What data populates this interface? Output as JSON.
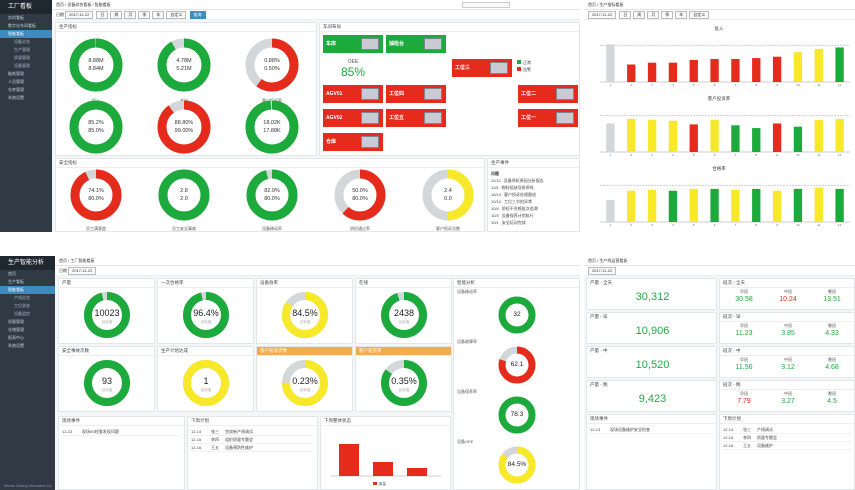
{
  "colors": {
    "green": "#1daa3c",
    "red": "#e52b1c",
    "yellow": "#f8e82a",
    "grey": "#d4d7da"
  },
  "p1": {
    "logo": "工厂看板",
    "breadcrumb": "首页 / 设备综合看板 / 智能看板",
    "filter_label": "日期",
    "filter_date": "2017-11-22",
    "buttons": [
      "日",
      "周",
      "月",
      "季",
      "年",
      "自定义"
    ],
    "query": "查询",
    "menu": [
      "实时看板",
      "数字化车间看板",
      "智能看板",
      "设备总览",
      "生产管理",
      "质量管理",
      "设备管理",
      "能耗管理",
      "人员管理",
      "仓库管理",
      "系统设置"
    ],
    "panel_left": "生产指标",
    "panel_mid": "车间布局",
    "panel_bottom": "安全指标",
    "panel_events": "生产事件",
    "donuts": [
      {
        "top": "8.88M",
        "bottom": "8.84M",
        "caption": "投入",
        "frac": 0.995,
        "color": "green"
      },
      {
        "top": "4.78M",
        "bottom": "5.21M",
        "caption": "产出",
        "frac": 0.92,
        "color": "green"
      },
      {
        "top": "0.88%",
        "bottom": "0.50%",
        "caption": "客户投诉率",
        "frac": 0.6,
        "color": "red"
      },
      {
        "top": "85.2%",
        "bottom": "85.0%",
        "caption": "OEE",
        "frac": 1.0,
        "color": "green"
      },
      {
        "top": "88.80%",
        "bottom": "99.00%",
        "caption": "合格率",
        "frac": 0.9,
        "color": "red"
      },
      {
        "top": "18.02K",
        "bottom": "17.88K",
        "caption": "产量",
        "frac": 0.99,
        "color": "green"
      }
    ],
    "bottom_donuts": [
      {
        "top": "74.1%",
        "bottom": "80.0%",
        "caption": "员工满意度",
        "frac": 0.93,
        "color": "red"
      },
      {
        "top": "2.8",
        "bottom": "2.0",
        "caption": "员工安全事故",
        "frac": 1.0,
        "color": "green"
      },
      {
        "top": "82.9%",
        "bottom": "80.0%",
        "caption": "设备稼动率",
        "frac": 0.96,
        "color": "green"
      },
      {
        "top": "50.0%",
        "bottom": "80.0%",
        "caption": "质检通过率",
        "frac": 0.62,
        "color": "red"
      },
      {
        "top": "2.4",
        "bottom": "0.0",
        "caption": "客户投诉次数",
        "frac": 0.5,
        "color": "yellow"
      }
    ],
    "stations": [
      {
        "name": "车床",
        "color": "green"
      },
      {
        "name": "抽检台",
        "color": "green"
      },
      {
        "name": "AGV01",
        "color": "red"
      },
      {
        "name": "工位四",
        "color": "red"
      },
      {
        "name": "AGV02",
        "color": "red"
      },
      {
        "name": "工位五",
        "color": "red"
      },
      {
        "name": "仓库",
        "color": "red"
      },
      {
        "name": "工位三",
        "color": "red"
      },
      {
        "name": "工位二",
        "color": "red"
      },
      {
        "name": "工位一",
        "color": "red"
      }
    ],
    "oee_label": "OEE",
    "oee_value": "85%",
    "legend": [
      "正常",
      "告警"
    ],
    "events_title": "问题",
    "events": [
      {
        "date": "11/12",
        "text": "设备停机原因分析报告"
      },
      {
        "date": "11/5",
        "text": "物料短缺导致停线"
      },
      {
        "date": "10/14",
        "text": "客户投诉处理跟进"
      },
      {
        "date": "10/12",
        "text": "工位三节拍异常"
      },
      {
        "date": "10/4",
        "text": "质检不合格批次追溯"
      },
      {
        "date": "10/3",
        "text": "设备保养计划执行"
      },
      {
        "date": "10/1",
        "text": "安全培训完成"
      }
    ]
  },
  "p2": {
    "breadcrumb": "首页 / 生产指标看板",
    "date": "2017-11-22",
    "chart1_title": "投入",
    "chart2_title": "客户投诉率",
    "chart3_title": "合格率"
  },
  "chart_data": [
    {
      "type": "bar",
      "title": "投入",
      "categories": [
        "1",
        "2",
        "3",
        "4",
        "5",
        "6",
        "7",
        "8",
        "9",
        "10",
        "11",
        "12"
      ],
      "values": [
        82,
        38,
        42,
        42,
        48,
        50,
        50,
        52,
        55,
        65,
        72,
        75
      ],
      "ylim": [
        0,
        100
      ]
    },
    {
      "type": "bar",
      "title": "客户投诉率",
      "categories": [
        "1",
        "2",
        "3",
        "4",
        "5",
        "6",
        "7",
        "8",
        "9",
        "10",
        "11",
        "12"
      ],
      "values": [
        62,
        72,
        70,
        68,
        60,
        70,
        58,
        52,
        62,
        55,
        70,
        72
      ],
      "ylim": [
        0,
        100
      ]
    },
    {
      "type": "bar",
      "title": "合格率",
      "categories": [
        "1",
        "2",
        "3",
        "4",
        "5",
        "6",
        "7",
        "8",
        "9",
        "10",
        "11",
        "12"
      ],
      "values": [
        48,
        68,
        70,
        68,
        72,
        72,
        70,
        72,
        68,
        72,
        75,
        72
      ],
      "ylim": [
        0,
        100
      ]
    },
    {
      "type": "bar",
      "title": "下周整体状态",
      "categories": [
        "1",
        "2",
        "3"
      ],
      "values": [
        80,
        35,
        20
      ],
      "ylim": [
        0,
        100
      ]
    }
  ],
  "p3": {
    "logo": "生产智能分析",
    "breadcrumb": "首页 / 工厂智能看板",
    "filter_label": "日期",
    "date": "2017-11-22",
    "menu": [
      "首页",
      "生产看板",
      "智能看板",
      "产线总览",
      "工位状态",
      "设备监控",
      "质量管理",
      "仓储管理",
      "报表中心",
      "系统设置"
    ],
    "footer": "Wuhan Dafang Information Co.",
    "right_panel": "智能分析",
    "cards": [
      {
        "title": "产量",
        "value": "10023",
        "sub": "目标值",
        "frac": 0.96,
        "color": "green",
        "hdr": ""
      },
      {
        "title": "一次合格率",
        "value": "96.4%",
        "sub": "目标值",
        "frac": 0.964,
        "color": "green",
        "hdr": ""
      },
      {
        "title": "设备效率",
        "value": "84.5%",
        "sub": "目标值",
        "frac": 0.845,
        "color": "yellow",
        "hdr": ""
      },
      {
        "title": "在线",
        "value": "2438",
        "sub": "目标值",
        "frac": 0.95,
        "color": "green",
        "hdr": ""
      },
      {
        "title": "安全事故次数",
        "value": "93",
        "sub": "目标值",
        "frac": 1.0,
        "color": "green",
        "hdr": ""
      },
      {
        "title": "生产计划达成",
        "value": "1",
        "sub": "目标值",
        "frac": 1.0,
        "color": "yellow",
        "hdr": ""
      },
      {
        "title": "客户投诉次数",
        "value": "0.23%",
        "sub": "目标值",
        "frac": 0.75,
        "color": "yellow",
        "hdr": "orange"
      },
      {
        "title": "客户退货率",
        "value": "0.35%",
        "sub": "目标值",
        "frac": 0.85,
        "color": "green",
        "hdr": "orange"
      }
    ],
    "side_donuts": [
      {
        "title": "设备稼动率",
        "value": "32",
        "color": "green",
        "frac": 1.0
      },
      {
        "title": "设备故障率",
        "value": "62.1",
        "color": "red",
        "frac": 0.8
      },
      {
        "title": "设备保养率",
        "value": "78.3",
        "color": "green",
        "frac": 1.0
      },
      {
        "title": "设备OEE",
        "value": "84.5%",
        "color": "yellow",
        "frac": 0.85
      }
    ],
    "events_title": "现场事件",
    "events": [
      {
        "date": "12-13",
        "text": "现场5S检查发现问题"
      }
    ],
    "plan_title": "下周计划",
    "plan": [
      {
        "date": "12-14",
        "who": "张三",
        "text": "完成新产线调试"
      },
      {
        "date": "12-15",
        "who": "李四",
        "text": "组织质量专题会"
      },
      {
        "date": "12-16",
        "who": "王五",
        "text": "设备预防性维护"
      }
    ],
    "chart_title": "下周整体状态",
    "chart_legend": "数量"
  },
  "p4": {
    "breadcrumb": "首页 / 生产线运营看板",
    "date": "2017-11-22",
    "blocks": [
      {
        "title": "产量 - 全天",
        "value": "30,312",
        "sub_title": "班次 - 全天",
        "kpis": [
          {
            "label": "早班",
            "value": "30.58",
            "color": "green"
          },
          {
            "label": "中班",
            "value": "10.24",
            "color": "red"
          },
          {
            "label": "晚班",
            "value": "13.51",
            "color": "green"
          }
        ]
      },
      {
        "title": "产量 - 早",
        "value": "10,906",
        "sub_title": "班次 - 早",
        "kpis": [
          {
            "label": "早班",
            "value": "11.23",
            "color": "green"
          },
          {
            "label": "中班",
            "value": "3.85",
            "color": "green"
          },
          {
            "label": "晚班",
            "value": "4.33",
            "color": "green"
          }
        ]
      },
      {
        "title": "产量 - 中",
        "value": "10,520",
        "sub_title": "班次 - 中",
        "kpis": [
          {
            "label": "早班",
            "value": "11.56",
            "color": "green"
          },
          {
            "label": "中班",
            "value": "3.12",
            "color": "green"
          },
          {
            "label": "晚班",
            "value": "4.68",
            "color": "green"
          }
        ]
      },
      {
        "title": "产量 - 晚",
        "value": "9,423",
        "sub_title": "班次 - 晚",
        "kpis": [
          {
            "label": "早班",
            "value": "7.79",
            "color": "red"
          },
          {
            "label": "中班",
            "value": "3.27",
            "color": "green"
          },
          {
            "label": "晚班",
            "value": "4.5",
            "color": "green"
          }
        ]
      }
    ],
    "events_title": "现场事件",
    "events": [
      {
        "date": "12-13",
        "text": "现场设备维护安全检查"
      }
    ],
    "plan_title": "下周计划",
    "plan": [
      {
        "date": "12-14",
        "who": "张三",
        "text": "产线调试"
      },
      {
        "date": "12-15",
        "who": "李四",
        "text": "质量专题会"
      },
      {
        "date": "12-16",
        "who": "王五",
        "text": "设备维护"
      }
    ]
  }
}
